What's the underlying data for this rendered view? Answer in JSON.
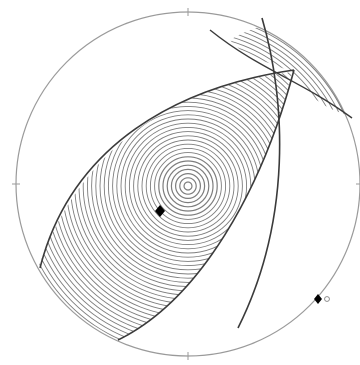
{
  "diagram": {
    "type": "stereographic-projection",
    "colors": {
      "primitive": "#9a9a9a",
      "ticks": "#9a9a9a",
      "contours": "#7d7d7d",
      "great_circles": "#3a3a3a",
      "marker": "#000000",
      "marker_secondary": "#8c8c8c"
    },
    "elements": {
      "primitive_circle": "primitive-circle",
      "contour_field": "concentric-contours",
      "great_circle_a": "great-circle",
      "great_circle_b": "great-circle",
      "pole_marker": "diamond-marker",
      "outer_marker": "diamond-marker",
      "outer_marker_ring": "small-ring-marker"
    }
  }
}
